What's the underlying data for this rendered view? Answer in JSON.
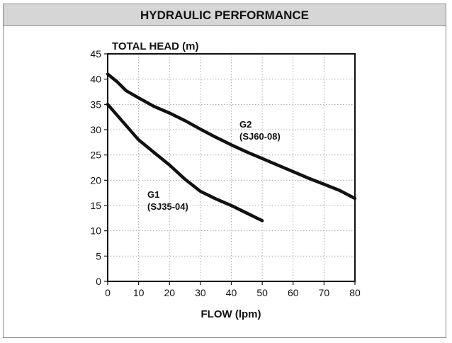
{
  "header": {
    "title": "HYDRAULIC PERFORMANCE"
  },
  "chart_data": {
    "type": "line",
    "ylabel": "TOTAL HEAD (m)",
    "xlabel": "FLOW (lpm)",
    "xlim": [
      0,
      80
    ],
    "ylim": [
      0,
      45
    ],
    "x_ticks": [
      0,
      10,
      20,
      30,
      40,
      50,
      60,
      70,
      80
    ],
    "y_ticks": [
      0,
      5,
      10,
      15,
      20,
      25,
      30,
      35,
      40,
      45
    ],
    "grid": true,
    "series": [
      {
        "name": "G1",
        "label_lines": [
          "G1",
          "(SJ35-04)"
        ],
        "x": [
          0,
          5,
          10,
          15,
          20,
          25,
          30,
          35,
          40,
          45,
          50
        ],
        "y": [
          35,
          31.5,
          28,
          25.5,
          23,
          20.2,
          17.8,
          16.3,
          15,
          13.5,
          12
        ]
      },
      {
        "name": "G2",
        "label_lines": [
          "G2",
          "(SJ60-08)"
        ],
        "x": [
          0,
          3,
          6,
          10,
          15,
          20,
          25,
          30,
          35,
          40,
          45,
          50,
          55,
          60,
          65,
          70,
          75,
          80
        ],
        "y": [
          41,
          39.5,
          37.7,
          36.3,
          34.6,
          33.3,
          31.8,
          30.1,
          28.5,
          27,
          25.6,
          24.3,
          23,
          21.7,
          20.4,
          19.2,
          18,
          16.4
        ]
      }
    ]
  }
}
